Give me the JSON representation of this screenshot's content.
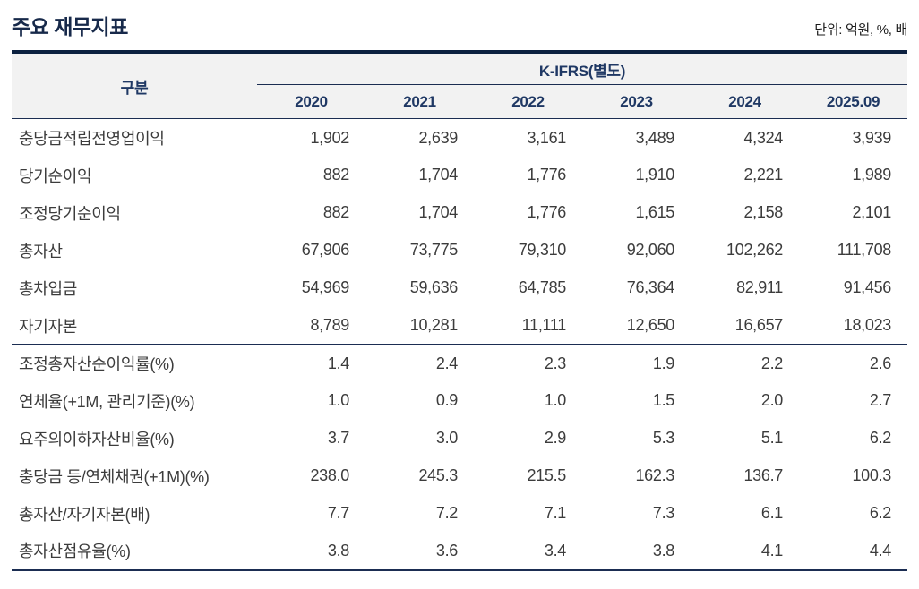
{
  "page": {
    "title": "주요 재무지표",
    "unit_note": "단위: 억원, %, 배"
  },
  "colors": {
    "accent_navy_dark": "#0c2140",
    "accent_navy": "#1f3864",
    "header_background": "#f2f2f2",
    "body_text": "#3c3c3c"
  },
  "table": {
    "row_header_label": "구분",
    "group_header": "K-IFRS(별도)",
    "years": [
      "2020",
      "2021",
      "2022",
      "2023",
      "2024",
      "2025.09"
    ],
    "rows_main": [
      {
        "label": "충당금적립전영업이익",
        "values": [
          "1,902",
          "2,639",
          "3,161",
          "3,489",
          "4,324",
          "3,939"
        ]
      },
      {
        "label": "당기순이익",
        "values": [
          "882",
          "1,704",
          "1,776",
          "1,910",
          "2,221",
          "1,989"
        ]
      },
      {
        "label": "조정당기순이익",
        "values": [
          "882",
          "1,704",
          "1,776",
          "1,615",
          "2,158",
          "2,101"
        ]
      },
      {
        "label": "총자산",
        "values": [
          "67,906",
          "73,775",
          "79,310",
          "92,060",
          "102,262",
          "111,708"
        ]
      },
      {
        "label": "총차입금",
        "values": [
          "54,969",
          "59,636",
          "64,785",
          "76,364",
          "82,911",
          "91,456"
        ]
      },
      {
        "label": "자기자본",
        "values": [
          "8,789",
          "10,281",
          "11,111",
          "12,650",
          "16,657",
          "18,023"
        ]
      }
    ],
    "rows_ratio": [
      {
        "label": "조정총자산순이익률(%)",
        "values": [
          "1.4",
          "2.4",
          "2.3",
          "1.9",
          "2.2",
          "2.6"
        ]
      },
      {
        "label": "연체율(+1M, 관리기준)(%)",
        "values": [
          "1.0",
          "0.9",
          "1.0",
          "1.5",
          "2.0",
          "2.7"
        ]
      },
      {
        "label": "요주의이하자산비율(%)",
        "values": [
          "3.7",
          "3.0",
          "2.9",
          "5.3",
          "5.1",
          "6.2"
        ]
      },
      {
        "label": "충당금 등/연체채권(+1M)(%)",
        "values": [
          "238.0",
          "245.3",
          "215.5",
          "162.3",
          "136.7",
          "100.3"
        ]
      },
      {
        "label": "총자산/자기자본(배)",
        "values": [
          "7.7",
          "7.2",
          "7.1",
          "7.3",
          "6.1",
          "6.2"
        ]
      },
      {
        "label": "총자산점유율(%)",
        "values": [
          "3.8",
          "3.6",
          "3.4",
          "3.8",
          "4.1",
          "4.4"
        ]
      }
    ]
  }
}
